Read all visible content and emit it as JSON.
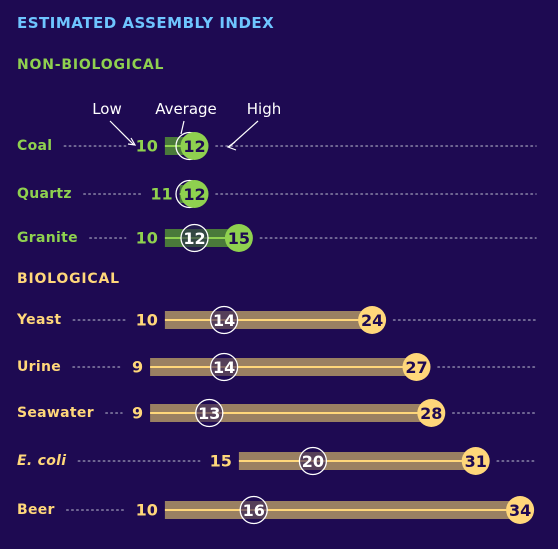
{
  "chart_data": {
    "type": "range-dot",
    "title": "ESTIMATED ASSEMBLY INDEX",
    "legend": {
      "low": "Low",
      "average": "Average",
      "high": "High"
    },
    "groups": [
      {
        "name": "NON-BIOLOGICAL",
        "items": [
          {
            "label": "Coal",
            "italic": false,
            "low": 10,
            "average": 12,
            "high": 12
          },
          {
            "label": "Quartz",
            "italic": false,
            "low": 11,
            "average": 12,
            "high": 12
          },
          {
            "label": "Granite",
            "italic": false,
            "low": 10,
            "average": 12,
            "high": 15
          }
        ]
      },
      {
        "name": "BIOLOGICAL",
        "items": [
          {
            "label": "Yeast",
            "italic": false,
            "low": 10,
            "average": 14,
            "high": 24
          },
          {
            "label": "Urine",
            "italic": false,
            "low": 9,
            "average": 14,
            "high": 27
          },
          {
            "label": "Seawater",
            "italic": false,
            "low": 9,
            "average": 13,
            "high": 28
          },
          {
            "label": "E. coli",
            "italic": true,
            "low": 15,
            "average": 20,
            "high": 31
          },
          {
            "label": "Beer",
            "italic": false,
            "low": 10,
            "average": 16,
            "high": 34
          }
        ]
      }
    ]
  },
  "colors": {
    "background": "#1e0a52",
    "title": "#6ec5ff",
    "non_biological": "#8fd14f",
    "non_biological_bar": "#4a7a3a",
    "biological": "#ffd77a",
    "biological_bar": "#9a8062",
    "text": "#ffffff",
    "dots": "#8a85a8"
  }
}
